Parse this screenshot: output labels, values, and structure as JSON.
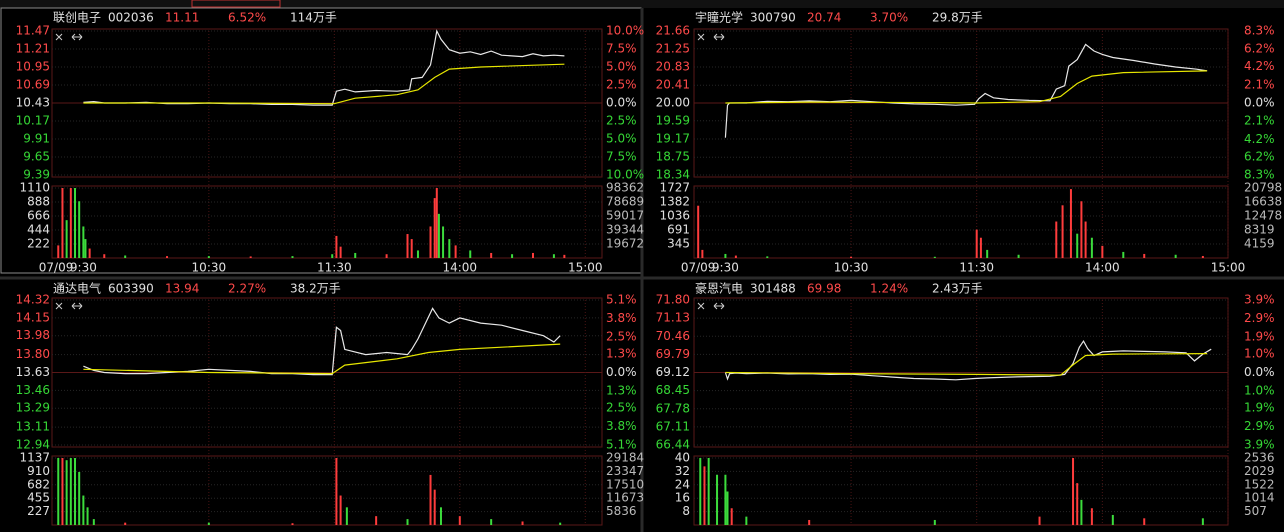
{
  "chart_data": [
    {
      "type": "line",
      "name": "联创电子",
      "code": "002036",
      "price": "11.11",
      "change": "6.52%",
      "turnover": "114万手",
      "date": "07/09",
      "xlim": [
        -15,
        248
      ],
      "xticks": [
        {
          "value": 0,
          "label": "9:30"
        },
        {
          "value": 60,
          "label": "10:30"
        },
        {
          "value": 120,
          "label": "11:30"
        },
        {
          "value": 180,
          "label": "14:00"
        },
        {
          "value": 240,
          "label": "15:00"
        }
      ],
      "ylim": [
        9.39,
        11.47
      ],
      "yticks": [
        11.47,
        11.21,
        10.95,
        10.69,
        10.43,
        10.17,
        9.91,
        9.65,
        9.39
      ],
      "y2lim": [
        -10,
        10
      ],
      "y2ticks": [
        {
          "value": 10,
          "label": "10.0%"
        },
        {
          "value": 7.5,
          "label": "7.5%"
        },
        {
          "value": 5,
          "label": "5.0%"
        },
        {
          "value": 2.5,
          "label": "2.5%"
        },
        {
          "value": 0,
          "label": "0.0%"
        },
        {
          "value": -2.5,
          "label": "2.5%"
        },
        {
          "value": -5,
          "label": "5.0%"
        },
        {
          "value": -7.5,
          "label": "7.5%"
        },
        {
          "value": -10,
          "label": "10.0%"
        }
      ],
      "series": [
        {
          "color": "#e8e8e8",
          "x": [
            0,
            5,
            10,
            20,
            30,
            40,
            50,
            60,
            70,
            80,
            90,
            100,
            110,
            119,
            121,
            125,
            130,
            140,
            150,
            156,
            157,
            162,
            166,
            168,
            169,
            171,
            175,
            180,
            185,
            190,
            195,
            200,
            210,
            215,
            220,
            225,
            230
          ],
          "values": [
            10.44,
            10.45,
            10.43,
            10.43,
            10.44,
            10.42,
            10.42,
            10.43,
            10.42,
            10.42,
            10.41,
            10.41,
            10.4,
            10.4,
            10.6,
            10.63,
            10.59,
            10.61,
            10.6,
            10.62,
            10.78,
            10.8,
            10.98,
            11.3,
            11.47,
            11.35,
            11.2,
            11.15,
            11.17,
            11.13,
            11.18,
            11.12,
            11.1,
            11.14,
            11.11,
            11.12,
            11.11
          ]
        },
        {
          "color": "#e6e600",
          "x": [
            0,
            60,
            120,
            130,
            150,
            160,
            168,
            175,
            190,
            230
          ],
          "values": [
            10.43,
            10.43,
            10.42,
            10.5,
            10.55,
            10.62,
            10.8,
            10.92,
            10.95,
            10.99
          ]
        }
      ],
      "bars": {
        "ylim": [
          0,
          1110
        ],
        "yticks": [
          1110,
          888,
          666,
          444,
          222
        ],
        "y2lim": [
          0,
          98362
        ],
        "y2ticks": [
          98362,
          78689,
          59017,
          39344,
          19672
        ],
        "up_color": "#ff3c3c",
        "down_color": "#3cdc3c",
        "up": {
          "x": [
            -12,
            -10,
            -6,
            3,
            10,
            40,
            80,
            121,
            123,
            145,
            155,
            157,
            166,
            168,
            169,
            178,
            195,
            215,
            230
          ],
          "values": [
            200,
            1110,
            1110,
            150,
            60,
            30,
            25,
            350,
            180,
            60,
            380,
            300,
            500,
            950,
            1110,
            200,
            80,
            80,
            50
          ]
        },
        "down": {
          "x": [
            -8,
            -4,
            -2,
            0,
            1,
            20,
            60,
            100,
            119,
            130,
            160,
            170,
            172,
            175,
            185,
            205,
            225
          ],
          "values": [
            600,
            1110,
            900,
            500,
            300,
            40,
            30,
            30,
            60,
            80,
            120,
            700,
            500,
            300,
            120,
            60,
            60
          ]
        }
      }
    },
    {
      "type": "line",
      "name": "宇瞳光学",
      "code": "300790",
      "price": "20.74",
      "change": "3.70%",
      "turnover": "29.8万手",
      "date": "07/09",
      "xlim": [
        -15,
        240
      ],
      "xticks": [
        {
          "value": 0,
          "label": "9:30"
        },
        {
          "value": 60,
          "label": "10:30"
        },
        {
          "value": 120,
          "label": "11:30"
        },
        {
          "value": 180,
          "label": "14:00"
        },
        {
          "value": 240,
          "label": "15:00"
        }
      ],
      "ylim": [
        18.34,
        21.66
      ],
      "yticks": [
        21.66,
        21.25,
        20.83,
        20.41,
        {
          "value": 20,
          "label": "20.00"
        },
        19.59,
        19.17,
        18.75,
        18.34
      ],
      "y2lim": [
        -8.3,
        8.3
      ],
      "y2ticks": [
        {
          "value": 8.3,
          "label": "8.3%"
        },
        {
          "value": 6.2,
          "label": "6.2%"
        },
        {
          "value": 4.2,
          "label": "4.2%"
        },
        {
          "value": 2.1,
          "label": "2.1%"
        },
        {
          "value": 0,
          "label": "0.0%"
        },
        {
          "value": -2.1,
          "label": "2.1%"
        },
        {
          "value": -4.2,
          "label": "4.2%"
        },
        {
          "value": -6.2,
          "label": "6.2%"
        },
        {
          "value": -8.3,
          "label": "8.3%"
        }
      ],
      "series": [
        {
          "color": "#e8e8e8",
          "x": [
            0,
            1,
            2,
            10,
            20,
            30,
            40,
            50,
            60,
            70,
            80,
            90,
            100,
            110,
            119,
            121,
            124,
            128,
            135,
            145,
            155,
            158,
            162,
            164,
            168,
            172,
            176,
            180,
            185,
            195,
            205,
            215,
            225,
            230
          ],
          "values": [
            19.2,
            19.95,
            20,
            20,
            20.04,
            20.03,
            20.05,
            20.03,
            20.06,
            20.03,
            20,
            19.98,
            19.97,
            19.95,
            19.97,
            20.1,
            20.22,
            20.12,
            20.08,
            20.06,
            20.05,
            20.32,
            20.4,
            20.85,
            21,
            21.35,
            21.2,
            21.12,
            21.05,
            20.98,
            20.9,
            20.83,
            20.78,
            20.74
          ]
        },
        {
          "color": "#e6e600",
          "x": [
            0,
            40,
            100,
            120,
            150,
            160,
            168,
            175,
            190,
            230
          ],
          "values": [
            20,
            20.02,
            20.01,
            20,
            20.03,
            20.15,
            20.45,
            20.62,
            20.7,
            20.74
          ]
        }
      ],
      "bars": {
        "ylim": [
          0,
          1727
        ],
        "yticks": [
          1727,
          1382,
          1036,
          691,
          345
        ],
        "y2lim": [
          0,
          20798
        ],
        "y2ticks": [
          20798,
          16638,
          12478,
          8319,
          4159
        ],
        "up_color": "#ff3c3c",
        "down_color": "#3cdc3c",
        "up": {
          "x": [
            -13,
            -11,
            5,
            60,
            120,
            122,
            158,
            161,
            165,
            170,
            172,
            180,
            200,
            228
          ],
          "values": [
            1290,
            200,
            60,
            30,
            700,
            500,
            900,
            1300,
            1700,
            1400,
            900,
            300,
            100,
            50
          ]
        },
        "down": {
          "x": [
            0,
            20,
            100,
            125,
            140,
            168,
            175,
            190,
            215
          ],
          "values": [
            100,
            40,
            30,
            200,
            80,
            600,
            500,
            150,
            80
          ]
        }
      }
    },
    {
      "type": "line",
      "name": "通达电气",
      "code": "603390",
      "price": "13.94",
      "change": "2.27%",
      "turnover": "38.2万手",
      "xlim": [
        -15,
        248
      ],
      "xticks": [
        0,
        60,
        120,
        180,
        240
      ],
      "ylim": [
        12.94,
        14.32
      ],
      "yticks": [
        14.32,
        14.15,
        13.98,
        {
          "value": 13.8,
          "label": "13.80"
        },
        13.63,
        13.46,
        13.29,
        13.11,
        12.94
      ],
      "y2lim": [
        -5.1,
        5.1
      ],
      "y2ticks": [
        {
          "value": 5.1,
          "label": "5.1%"
        },
        {
          "value": 3.8,
          "label": "3.8%"
        },
        {
          "value": 2.5,
          "label": "2.5%"
        },
        {
          "value": 1.3,
          "label": "1.3%"
        },
        {
          "value": 0,
          "label": "0.0%"
        },
        {
          "value": -1.3,
          "label": "1.3%"
        },
        {
          "value": -2.5,
          "label": "2.5%"
        },
        {
          "value": -3.8,
          "label": "3.8%"
        },
        {
          "value": -5.1,
          "label": "5.1%"
        }
      ],
      "series": [
        {
          "color": "#e8e8e8",
          "x": [
            0,
            5,
            10,
            20,
            30,
            40,
            50,
            60,
            70,
            80,
            90,
            100,
            110,
            119,
            121,
            123,
            125,
            135,
            145,
            155,
            157,
            160,
            167,
            170,
            175,
            180,
            190,
            200,
            210,
            220,
            225,
            228
          ],
          "values": [
            13.69,
            13.65,
            13.63,
            13.62,
            13.62,
            13.63,
            13.64,
            13.66,
            13.65,
            13.64,
            13.62,
            13.62,
            13.61,
            13.61,
            14.06,
            14.03,
            13.85,
            13.8,
            13.82,
            13.8,
            13.85,
            13.95,
            14.24,
            14.15,
            14.1,
            14.15,
            14.1,
            14.08,
            14.03,
            13.98,
            13.92,
            13.98
          ]
        },
        {
          "color": "#e6e600",
          "x": [
            0,
            60,
            119,
            125,
            150,
            165,
            180,
            228
          ],
          "values": [
            13.66,
            13.63,
            13.62,
            13.7,
            13.76,
            13.82,
            13.85,
            13.9
          ]
        }
      ],
      "bars": {
        "ylim": [
          0,
          1137
        ],
        "yticks": [
          1137,
          910,
          682,
          455,
          227
        ],
        "y2lim": [
          0,
          29184
        ],
        "y2ticks": [
          29184,
          23347,
          17510,
          11673,
          5836
        ],
        "up_color": "#ff3c3c",
        "down_color": "#3cdc3c",
        "up": {
          "x": [
            -10,
            20,
            100,
            121,
            123,
            140,
            166,
            168,
            180,
            210
          ],
          "values": [
            1137,
            40,
            30,
            1137,
            500,
            150,
            850,
            600,
            150,
            60
          ]
        },
        "down": {
          "x": [
            -12,
            -8,
            -6,
            -4,
            -2,
            0,
            2,
            5,
            60,
            126,
            155,
            171,
            195,
            228
          ],
          "values": [
            1137,
            1100,
            1137,
            1137,
            900,
            500,
            300,
            100,
            40,
            300,
            100,
            300,
            100,
            40
          ]
        }
      }
    },
    {
      "type": "line",
      "name": "豪恩汽电",
      "code": "301488",
      "price": "69.98",
      "change": "1.24%",
      "turnover": "2.43万手",
      "xlim": [
        -15,
        240
      ],
      "xticks": [
        0,
        60,
        120,
        180,
        240
      ],
      "ylim": [
        66.44,
        71.8
      ],
      "yticks": [
        {
          "value": 71.8,
          "label": "71.80"
        },
        71.13,
        70.46,
        69.79,
        69.12,
        68.45,
        67.78,
        67.11,
        66.44
      ],
      "y2lim": [
        -3.9,
        3.9
      ],
      "y2ticks": [
        {
          "value": 3.9,
          "label": "3.9%"
        },
        {
          "value": 2.9,
          "label": "2.9%"
        },
        {
          "value": 1.9,
          "label": "1.9%"
        },
        {
          "value": 1,
          "label": "1.0%"
        },
        {
          "value": 0,
          "label": "0.0%"
        },
        {
          "value": -1,
          "label": "1.0%"
        },
        {
          "value": -1.9,
          "label": "1.9%"
        },
        {
          "value": -2.9,
          "label": "2.9%"
        },
        {
          "value": -3.9,
          "label": "3.9%"
        }
      ],
      "series": [
        {
          "color": "#e8e8e8",
          "x": [
            0,
            1,
            2,
            5,
            10,
            20,
            30,
            40,
            50,
            60,
            70,
            80,
            90,
            100,
            110,
            119,
            125,
            135,
            145,
            155,
            162,
            166,
            169,
            171,
            173,
            176,
            180,
            190,
            200,
            210,
            220,
            224,
            228,
            232
          ],
          "values": [
            69.12,
            68.88,
            69.08,
            69.1,
            69.08,
            69.1,
            69.07,
            69.08,
            69.05,
            69.06,
            69,
            68.95,
            68.9,
            68.88,
            68.85,
            68.9,
            68.92,
            68.95,
            68.97,
            68.98,
            69.05,
            69.45,
            70.05,
            70.28,
            70,
            69.75,
            69.88,
            69.92,
            69.9,
            69.88,
            69.85,
            69.55,
            69.8,
            69.98
          ]
        },
        {
          "color": "#e6e600",
          "x": [
            0,
            60,
            120,
            160,
            166,
            172,
            185,
            230
          ],
          "values": [
            69.12,
            69.08,
            69.05,
            69.02,
            69.4,
            69.75,
            69.8,
            69.82
          ]
        }
      ],
      "bars": {
        "ylim": [
          0,
          40
        ],
        "yticks": [
          40,
          32,
          24,
          16,
          8
        ],
        "y2lim": [
          0,
          2536
        ],
        "y2ticks": [
          2536,
          2029,
          1522,
          1014,
          507
        ],
        "up_color": "#ff3c3c",
        "down_color": "#3cdc3c",
        "up": {
          "x": [
            -10,
            3,
            40,
            150,
            166,
            168,
            175,
            200
          ],
          "values": [
            35,
            10,
            3,
            5,
            40,
            25,
            10,
            4
          ]
        },
        "down": {
          "x": [
            -12,
            -8,
            -4,
            0,
            1,
            10,
            100,
            170,
            185,
            228
          ],
          "values": [
            40,
            40,
            30,
            30,
            20,
            5,
            3,
            15,
            6,
            4
          ]
        }
      }
    }
  ]
}
